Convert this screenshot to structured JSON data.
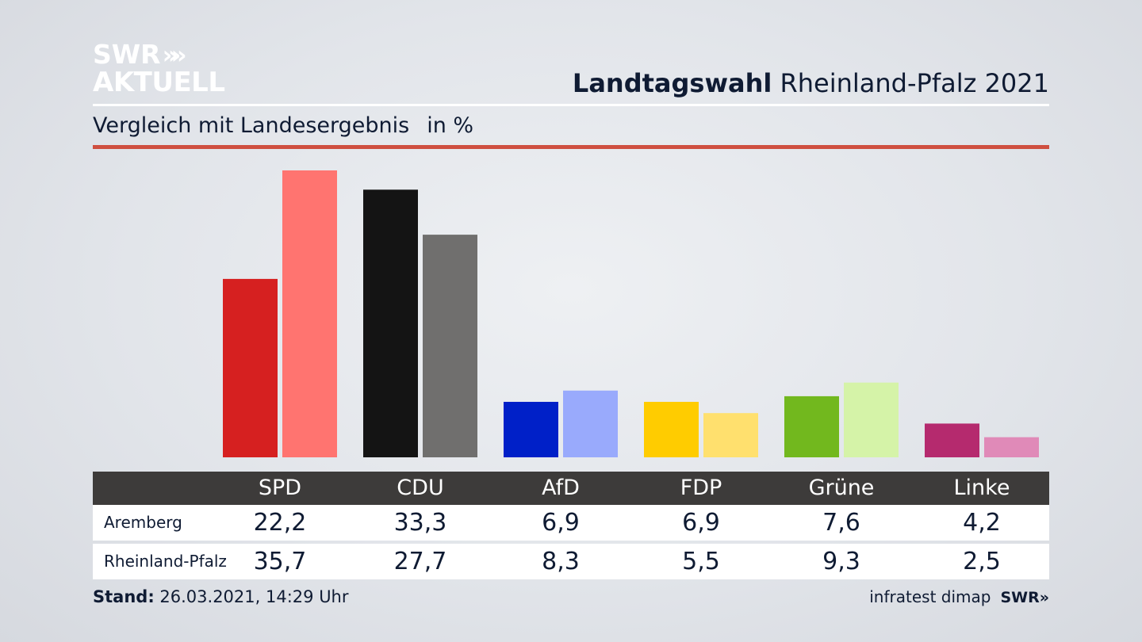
{
  "brand": {
    "logo_line1": "SWR",
    "logo_chevrons": "»»",
    "logo_line2": "AKTUELL",
    "footer_source": "infratest dimap",
    "footer_logo": "SWR»"
  },
  "header": {
    "title_bold": "Landtagswahl",
    "title_rest": "Rheinland-Pfalz 2021",
    "subtitle": "Vergleich mit Landesergebnis",
    "unit": "in %"
  },
  "footer": {
    "stand_label": "Stand:",
    "stand_value": "26.03.2021, 14:29 Uhr"
  },
  "chart_data": {
    "type": "bar",
    "title": "Landtagswahl Rheinland-Pfalz 2021",
    "subtitle": "Vergleich mit Landesergebnis in %",
    "categories": [
      "SPD",
      "CDU",
      "AfD",
      "FDP",
      "Grüne",
      "Linke"
    ],
    "series": [
      {
        "name": "Aremberg",
        "values": [
          22.2,
          33.3,
          6.9,
          6.9,
          7.6,
          4.2
        ],
        "colors": [
          "#d62020",
          "#141414",
          "#0020c8",
          "#ffcc00",
          "#72b81e",
          "#b52a6e"
        ]
      },
      {
        "name": "Rheinland-Pfalz",
        "values": [
          35.7,
          27.7,
          8.3,
          5.5,
          9.3,
          2.5
        ],
        "colors": [
          "#ff7470",
          "#706f6e",
          "#99aafc",
          "#ffe06e",
          "#d5f3a8",
          "#e08ab8"
        ]
      }
    ],
    "value_labels": [
      [
        "22,2",
        "33,3",
        "6,9",
        "6,9",
        "7,6",
        "4,2"
      ],
      [
        "35,7",
        "27,7",
        "8,3",
        "5,5",
        "9,3",
        "2,5"
      ]
    ],
    "ylim": [
      0,
      35.7
    ],
    "xlabel": "",
    "ylabel": "",
    "grid": false,
    "legend": "table-below"
  },
  "colors": {
    "accent_rule": "#cf4f40",
    "table_header_bg": "#3d3b3a",
    "text": "#0f1b33"
  }
}
